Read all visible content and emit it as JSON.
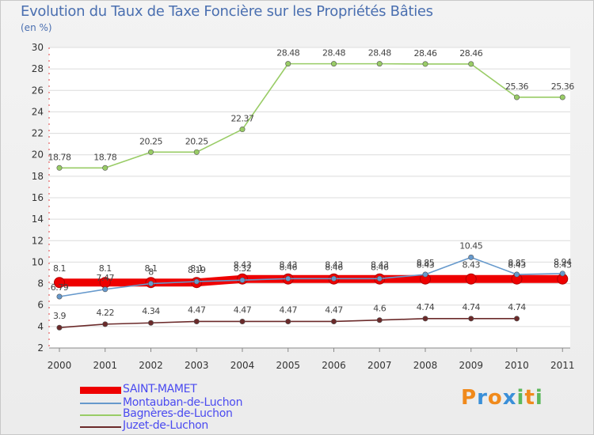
{
  "chart_data": {
    "type": "line",
    "title": "Evolution du Taux de Taxe Foncière sur les Propriétés Bâties",
    "ylabel": "(en %)",
    "xlabel": "",
    "ylim": [
      2,
      30
    ],
    "yticks": [
      2,
      4,
      6,
      8,
      10,
      12,
      14,
      16,
      18,
      20,
      22,
      24,
      26,
      28,
      30
    ],
    "categories": [
      "2000",
      "2001",
      "2002",
      "2003",
      "2004",
      "2005",
      "2006",
      "2007",
      "2008",
      "2009",
      "2010",
      "2011"
    ],
    "series": [
      {
        "name": "SAINT-MAMET",
        "color": "#ee0000",
        "values": [
          8.1,
          8.1,
          8.1,
          8.1,
          8.43,
          8.43,
          8.43,
          8.43,
          8.43,
          8.43,
          8.43,
          8.43
        ],
        "labels": [
          "8.1",
          "8.1",
          "8.1",
          "8.1",
          "8.43",
          "8.43",
          "8.43",
          "8.43",
          "8.43",
          "8.43",
          "8.43",
          "8.43"
        ]
      },
      {
        "name": "Montauban-de-Luchon",
        "color": "#6699cc",
        "values": [
          6.79,
          7.47,
          8,
          8.19,
          8.32,
          8.46,
          8.46,
          8.46,
          8.85,
          10.45,
          8.85,
          8.94
        ],
        "labels": [
          "6.79",
          "7.47",
          "8",
          "8.19",
          "8.32",
          "8.46",
          "8.46",
          "8.46",
          "8.85",
          "10.45",
          "8.85",
          "8.94"
        ]
      },
      {
        "name": "Bagnères-de-Luchon",
        "color": "#99cc66",
        "values": [
          18.78,
          18.78,
          20.25,
          20.25,
          22.37,
          28.48,
          28.48,
          28.48,
          28.46,
          28.46,
          25.36,
          25.36
        ],
        "labels": [
          "18.78",
          "18.78",
          "20.25",
          "20.25",
          "22.37",
          "28.48",
          "28.48",
          "28.48",
          "28.46",
          "28.46",
          "25.36",
          "25.36"
        ]
      },
      {
        "name": "Juzet-de-Luchon",
        "color": "#6b2a2a",
        "values": [
          3.9,
          4.22,
          4.34,
          4.47,
          4.47,
          4.47,
          4.47,
          4.6,
          4.74,
          4.74,
          4.74,
          null
        ],
        "labels": [
          "3.9",
          "4.22",
          "4.34",
          "4.47",
          "4.47",
          "4.47",
          "4.47",
          "4.6",
          "4.74",
          "4.74",
          "4.74",
          ""
        ]
      }
    ],
    "legend": {
      "position": "bottom-left"
    }
  },
  "logo": {
    "letters": [
      "P",
      "r",
      "o",
      "x",
      "i",
      "t",
      "i"
    ],
    "colors": [
      "#f08a1c",
      "#3a8fd8",
      "#f08a1c",
      "#3a8fd8",
      "#5cb85c",
      "#f08a1c",
      "#5cb85c"
    ]
  }
}
